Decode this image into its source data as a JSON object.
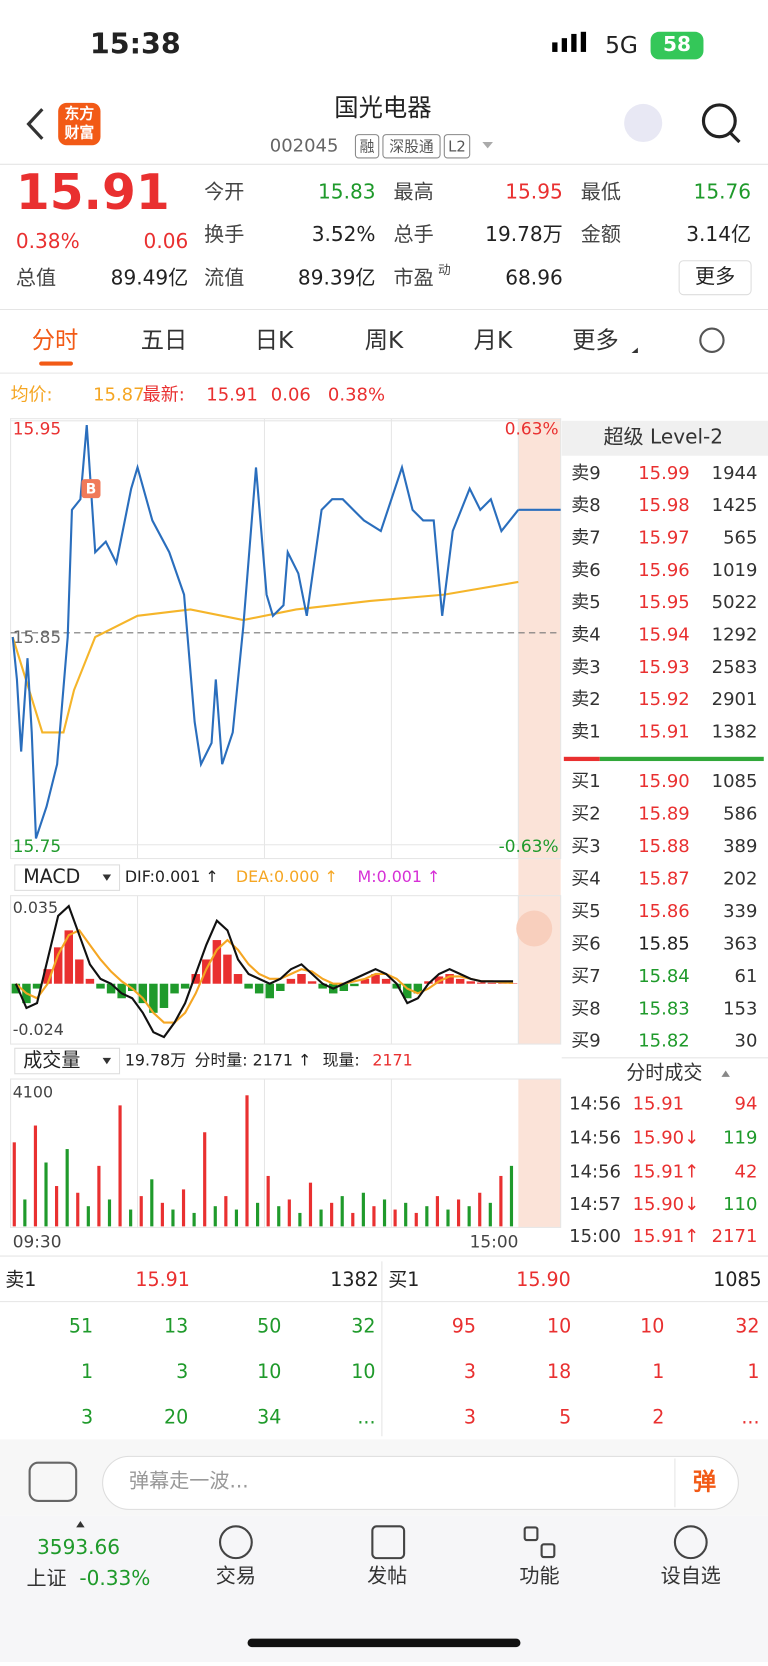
{
  "status": {
    "time": "15:38",
    "network": "5G",
    "battery": "58"
  },
  "header": {
    "logo": [
      "东方",
      "财富"
    ],
    "title": "国光电器",
    "code": "002045",
    "tags": [
      "融",
      "深股通",
      "L2"
    ]
  },
  "quote": {
    "price": "15.91",
    "pct": "0.38%",
    "change": "0.06",
    "fields": [
      {
        "label": "今开",
        "value": "15.83"
      },
      {
        "label": "最高",
        "value": "15.95"
      },
      {
        "label": "最低",
        "value": "15.76"
      },
      {
        "label": "换手",
        "value": "3.52%"
      },
      {
        "label": "总手",
        "value": "19.78万"
      },
      {
        "label": "金额",
        "value": "3.14亿"
      },
      {
        "label": "总值",
        "value": "89.49亿"
      },
      {
        "label": "流值",
        "value": "89.39亿"
      },
      {
        "label": "市盈",
        "sup": "动",
        "value": "68.96"
      }
    ],
    "more": "更多"
  },
  "tabs": [
    "分时",
    "五日",
    "日K",
    "周K",
    "月K",
    "更多"
  ],
  "info": {
    "avg_label": "均价:",
    "avg": "15.87",
    "latest_label": "最新:",
    "latest": "15.91",
    "change": "0.06",
    "pct": "0.38%"
  },
  "price_chart": {
    "ymax": 15.95,
    "ymid": 15.85,
    "ymin": 15.75,
    "pct_high": "0.63%",
    "pct_low": "-0.63%",
    "marker": "B",
    "xlim": [
      0,
      240
    ],
    "x": [
      1,
      3,
      5,
      8,
      10,
      12,
      17,
      22,
      27,
      29,
      33,
      36,
      40,
      45,
      50,
      57,
      60,
      67,
      75,
      82,
      87,
      90,
      95,
      97,
      100,
      105,
      110,
      116,
      121,
      124,
      129,
      131,
      136,
      140,
      147,
      152,
      157,
      162,
      167,
      175,
      185,
      190,
      195,
      200,
      204,
      209,
      217,
      222,
      227,
      232,
      240
    ],
    "values": [
      15.848,
      15.828,
      15.794,
      15.838,
      15.803,
      15.753,
      15.768,
      15.788,
      15.848,
      15.908,
      15.913,
      15.948,
      15.888,
      15.893,
      15.883,
      15.918,
      15.928,
      15.903,
      15.888,
      15.868,
      15.808,
      15.788,
      15.798,
      15.828,
      15.788,
      15.803,
      15.853,
      15.928,
      15.868,
      15.858,
      15.863,
      15.888,
      15.878,
      15.858,
      15.908,
      15.913,
      15.913,
      15.908,
      15.903,
      15.898,
      15.928,
      15.908,
      15.903,
      15.903,
      15.858,
      15.898,
      15.918,
      15.908,
      15.913,
      15.898,
      15.908
    ],
    "avg_x": [
      1,
      15,
      25,
      30,
      40,
      60,
      85,
      110,
      135,
      170,
      205,
      240
    ],
    "avg_values": [
      15.848,
      15.803,
      15.803,
      15.823,
      15.848,
      15.858,
      15.861,
      15.856,
      15.861,
      15.865,
      15.868,
      15.874
    ]
  },
  "macd": {
    "name": "MACD",
    "dif_label": "DIF:0.001 ↑",
    "dea_label": "DEA:0.000 ↑",
    "m_label": "M:0.001 ↑",
    "max": 0.035,
    "min": -0.024,
    "hist": [
      -0.004,
      -0.008,
      -0.002,
      0.006,
      0.015,
      0.022,
      0.01,
      0.002,
      -0.002,
      -0.004,
      -0.006,
      -0.003,
      -0.008,
      -0.012,
      -0.01,
      -0.004,
      -0.002,
      0.004,
      0.01,
      0.018,
      0.012,
      0.004,
      -0.002,
      -0.004,
      -0.006,
      -0.003,
      0.002,
      0.004,
      0.001,
      -0.002,
      -0.004,
      -0.003,
      -0.001,
      0.002,
      0.004,
      0.002,
      -0.002,
      -0.006,
      -0.004,
      0.001,
      0.003,
      0.004,
      0.002,
      0.001,
      0.0005,
      0.0004,
      0.0003,
      0.0002
    ],
    "dif": [
      0,
      -0.01,
      -0.008,
      0.01,
      0.028,
      0.032,
      0.02,
      0.008,
      0.002,
      0,
      -0.004,
      -0.006,
      -0.012,
      -0.02,
      -0.022,
      -0.016,
      -0.008,
      0.004,
      0.016,
      0.026,
      0.022,
      0.01,
      0.004,
      0.002,
      0,
      0.002,
      0.006,
      0.008,
      0.004,
      0,
      -0.002,
      0,
      0.002,
      0.004,
      0.006,
      0.004,
      0,
      -0.008,
      -0.006,
      0,
      0.004,
      0.006,
      0.004,
      0.002,
      0.001,
      0.001,
      0.001,
      0.001
    ],
    "dea": [
      0,
      -0.004,
      -0.006,
      0,
      0.012,
      0.02,
      0.022,
      0.016,
      0.01,
      0.005,
      0.001,
      -0.002,
      -0.006,
      -0.012,
      -0.016,
      -0.016,
      -0.012,
      -0.004,
      0.006,
      0.014,
      0.018,
      0.014,
      0.008,
      0.004,
      0.002,
      0.002,
      0.004,
      0.006,
      0.005,
      0.002,
      0,
      0,
      0.001,
      0.002,
      0.004,
      0.004,
      0.002,
      -0.002,
      -0.004,
      -0.002,
      0.001,
      0.003,
      0.003,
      0.002,
      0.001,
      0.001,
      0.0005,
      0.0003
    ]
  },
  "volume": {
    "name": "成交量",
    "total": "19.78万",
    "period": "分时量: 2171 ↑",
    "now_label": "现量:",
    "now": "2171",
    "max": 4100,
    "start": "09:30",
    "end": "15:00",
    "values": [
      2500,
      800,
      3000,
      1900,
      1200,
      2300,
      1000,
      600,
      1800,
      800,
      3600,
      500,
      900,
      1400,
      700,
      500,
      1100,
      400,
      2800,
      600,
      900,
      500,
      3900,
      700,
      1500,
      600,
      800,
      400,
      1300,
      500,
      700,
      900,
      400,
      1000,
      600,
      800,
      500,
      700,
      400,
      600,
      900,
      500,
      800,
      600,
      1000,
      700,
      1500,
      1800
    ]
  },
  "orderbook": {
    "title": "超级 Level-2",
    "asks": [
      [
        "卖9",
        "15.99",
        "1944"
      ],
      [
        "卖8",
        "15.98",
        "1425"
      ],
      [
        "卖7",
        "15.97",
        "565"
      ],
      [
        "卖6",
        "15.96",
        "1019"
      ],
      [
        "卖5",
        "15.95",
        "5022"
      ],
      [
        "卖4",
        "15.94",
        "1292"
      ],
      [
        "卖3",
        "15.93",
        "2583"
      ],
      [
        "卖2",
        "15.92",
        "2901"
      ],
      [
        "卖1",
        "15.91",
        "1382"
      ]
    ],
    "bids": [
      [
        "买1",
        "15.90",
        "1085"
      ],
      [
        "买2",
        "15.89",
        "586"
      ],
      [
        "买3",
        "15.88",
        "389"
      ],
      [
        "买4",
        "15.87",
        "202"
      ],
      [
        "买5",
        "15.86",
        "339"
      ],
      [
        "买6",
        "15.85",
        "363"
      ],
      [
        "买7",
        "15.84",
        "61"
      ],
      [
        "买8",
        "15.83",
        "153"
      ],
      [
        "买9",
        "15.82",
        "30"
      ]
    ]
  },
  "trades": {
    "title": "分时成交",
    "rows": [
      [
        "14:56",
        "15.91",
        "94"
      ],
      [
        "14:56",
        "15.90↓",
        "119"
      ],
      [
        "14:56",
        "15.91↑",
        "42"
      ],
      [
        "14:57",
        "15.90↓",
        "110"
      ],
      [
        "15:00",
        "15.91↑",
        "2171"
      ]
    ]
  },
  "queue": {
    "ask": {
      "label": "卖1",
      "price": "15.91",
      "volume": "1382",
      "orders": [
        "51",
        "13",
        "50",
        "32",
        "1",
        "3",
        "10",
        "10",
        "3",
        "20",
        "34",
        "..."
      ]
    },
    "bid": {
      "label": "买1",
      "price": "15.90",
      "volume": "1085",
      "orders": [
        "95",
        "10",
        "10",
        "32",
        "3",
        "18",
        "1",
        "1",
        "3",
        "5",
        "2",
        "..."
      ]
    }
  },
  "bottom": {
    "danmu_placeholder": "弹幕走一波...",
    "danmu_button": "弹",
    "index_value": "3593.66",
    "index_name": "上证",
    "index_pct": "-0.33%",
    "nav": [
      "交易",
      "发帖",
      "功能",
      "设自选"
    ]
  }
}
